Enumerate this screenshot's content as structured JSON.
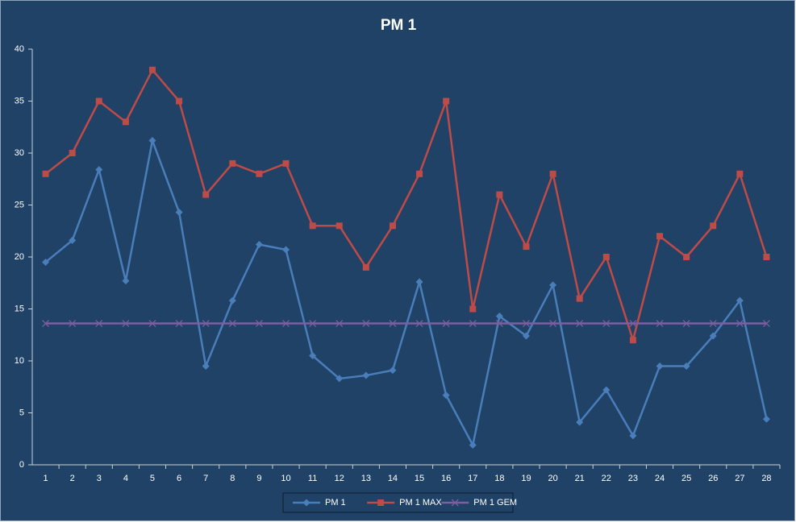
{
  "chart_data": {
    "type": "line",
    "title": "PM 1",
    "categories": [
      "1",
      "2",
      "3",
      "4",
      "5",
      "6",
      "7",
      "8",
      "9",
      "10",
      "11",
      "12",
      "13",
      "14",
      "15",
      "16",
      "17",
      "18",
      "19",
      "20",
      "21",
      "22",
      "23",
      "24",
      "25",
      "26",
      "27",
      "28"
    ],
    "series": [
      {
        "name": "PM 1",
        "color": "#4a7ebb",
        "marker": "diamond",
        "values": [
          19.5,
          21.6,
          28.4,
          17.7,
          31.2,
          24.3,
          9.5,
          15.8,
          21.2,
          20.7,
          10.5,
          8.3,
          8.6,
          9.1,
          17.6,
          6.7,
          1.9,
          14.3,
          12.4,
          17.3,
          4.1,
          7.2,
          2.8,
          9.5,
          9.5,
          12.4,
          15.8,
          4.4
        ]
      },
      {
        "name": "PM 1 MAX",
        "color": "#be4b48",
        "marker": "square",
        "values": [
          28,
          30,
          35,
          33,
          38,
          35,
          26,
          29,
          28,
          29,
          23,
          23,
          19,
          23,
          28,
          35,
          15,
          26,
          21,
          28,
          16,
          20,
          12,
          22,
          20,
          23,
          28,
          20
        ]
      },
      {
        "name": "PM 1 GEM",
        "color": "#7d5fa0",
        "marker": "x",
        "values": [
          13.6,
          13.6,
          13.6,
          13.6,
          13.6,
          13.6,
          13.6,
          13.6,
          13.6,
          13.6,
          13.6,
          13.6,
          13.6,
          13.6,
          13.6,
          13.6,
          13.6,
          13.6,
          13.6,
          13.6,
          13.6,
          13.6,
          13.6,
          13.6,
          13.6,
          13.6,
          13.6,
          13.6
        ]
      }
    ],
    "ylim": [
      0,
      40
    ],
    "yticks": [
      0,
      5,
      10,
      15,
      20,
      25,
      30,
      35,
      40
    ],
    "grid": false,
    "legend": "bottom"
  }
}
